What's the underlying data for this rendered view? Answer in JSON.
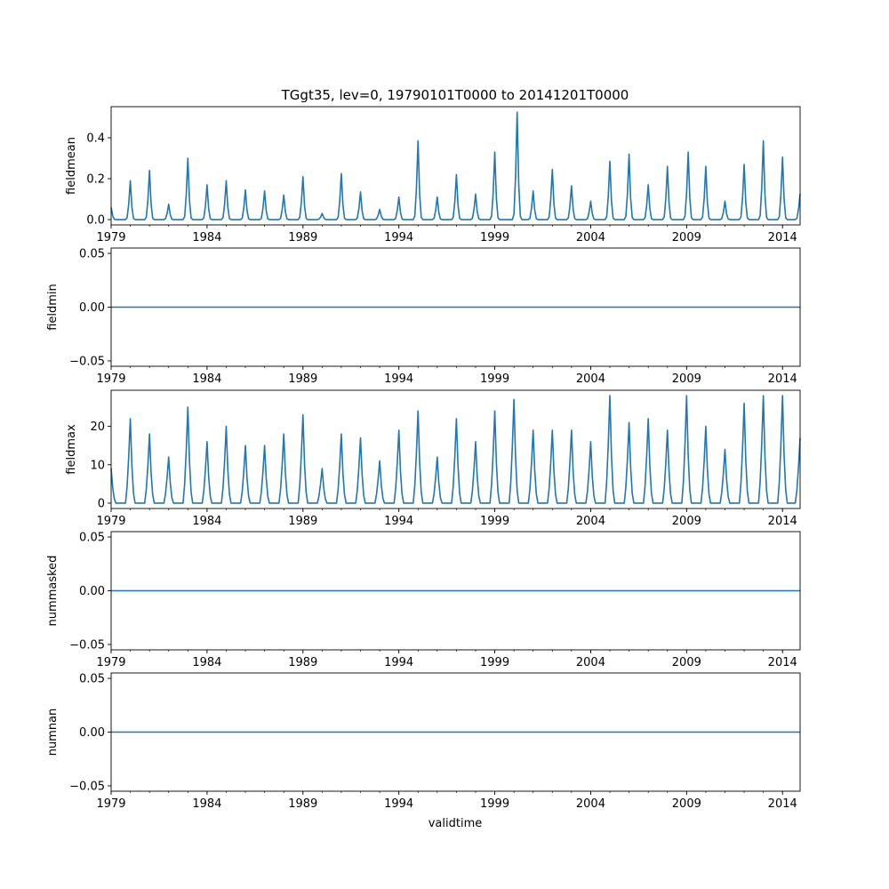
{
  "figure": {
    "title": "TGgt35, lev=0, 19790101T0000 to 20141201T0000",
    "xlabel": "validtime"
  },
  "style": {
    "line_color": "#1f77b4",
    "axis_color": "#000000",
    "background": "#ffffff"
  },
  "chart_data": [
    {
      "type": "line",
      "ylabel": "fieldmean",
      "xlim": [
        "1979-01",
        "2014-12"
      ],
      "ylim": [
        -0.026,
        0.552
      ],
      "yticks": [
        0.0,
        0.2,
        0.4
      ],
      "ytick_labels": [
        "0.0",
        "0.2",
        "0.4"
      ],
      "xticks": [
        "1979",
        "1984",
        "1989",
        "1994",
        "1999",
        "2004",
        "2009",
        "2014"
      ],
      "grid": false,
      "series": [
        {
          "values": []
        }
      ]
    },
    {
      "type": "line",
      "ylabel": "fieldmin",
      "xlim": [
        "1979-01",
        "2014-12"
      ],
      "ylim": [
        -0.055,
        0.055
      ],
      "yticks": [
        -0.05,
        0.0,
        0.05
      ],
      "ytick_labels": [
        "−0.05",
        "0.00",
        "0.05"
      ],
      "xticks": [
        "1979",
        "1984",
        "1989",
        "1994",
        "1999",
        "2004",
        "2009",
        "2014"
      ],
      "grid": false,
      "series": [
        {
          "values": []
        }
      ]
    },
    {
      "type": "line",
      "ylabel": "fieldmax",
      "xlim": [
        "1979-01",
        "2014-12"
      ],
      "ylim": [
        -1.4,
        29.4
      ],
      "yticks": [
        0,
        10,
        20
      ],
      "ytick_labels": [
        "0",
        "10",
        "20"
      ],
      "xticks": [
        "1979",
        "1984",
        "1989",
        "1994",
        "1999",
        "2004",
        "2009",
        "2014"
      ],
      "grid": false,
      "series": [
        {
          "values": []
        }
      ]
    },
    {
      "type": "line",
      "ylabel": "nummasked",
      "xlim": [
        "1979-01",
        "2014-12"
      ],
      "ylim": [
        -0.055,
        0.055
      ],
      "yticks": [
        -0.05,
        0.0,
        0.05
      ],
      "ytick_labels": [
        "−0.05",
        "0.00",
        "0.05"
      ],
      "xticks": [
        "1979",
        "1984",
        "1989",
        "1994",
        "1999",
        "2004",
        "2009",
        "2014"
      ],
      "grid": false,
      "series": [
        {
          "values": []
        }
      ]
    },
    {
      "type": "line",
      "ylabel": "numnan",
      "xlim": [
        "1979-01",
        "2014-12"
      ],
      "ylim": [
        -0.055,
        0.055
      ],
      "yticks": [
        -0.05,
        0.0,
        0.05
      ],
      "ytick_labels": [
        "−0.05",
        "0.00",
        "0.05"
      ],
      "xticks": [
        "1979",
        "1984",
        "1989",
        "1994",
        "1999",
        "2004",
        "2009",
        "2014"
      ],
      "grid": false,
      "series": [
        {
          "values": []
        }
      ]
    }
  ]
}
